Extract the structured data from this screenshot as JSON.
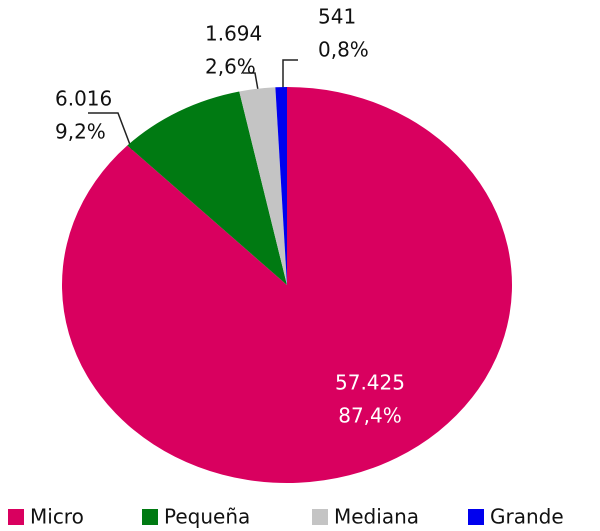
{
  "chart_data": {
    "type": "pie",
    "categories": [
      "Micro",
      "Pequeña",
      "Mediana",
      "Grande"
    ],
    "values": [
      57425,
      6016,
      1694,
      541
    ],
    "value_labels": [
      "57.425",
      "6.016",
      "1.694",
      "541"
    ],
    "percentages": [
      87.4,
      9.2,
      2.6,
      0.8
    ],
    "percentage_labels": [
      "87,4%",
      "9,2%",
      "2,6%",
      "0,8%"
    ],
    "colors": [
      "#d9005f",
      "#007a12",
      "#c4c4c4",
      "#0000ee"
    ],
    "legend": "bottom"
  }
}
